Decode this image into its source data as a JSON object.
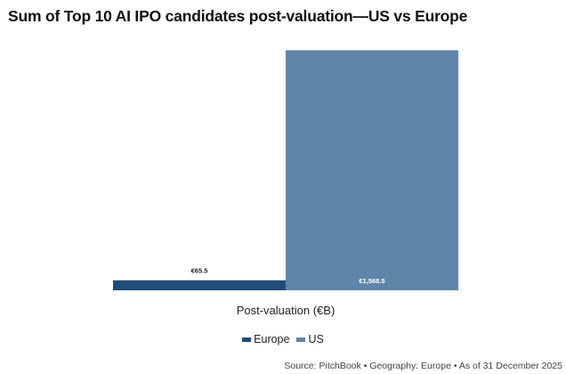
{
  "chart_data": {
    "type": "bar",
    "title": "Sum of Top 10 AI IPO candidates post-valuation—US vs Europe",
    "xlabel": "Post-valuation (€B)",
    "ylabel": "",
    "ylim": [
      0,
      1600
    ],
    "grid": false,
    "legend_position": "bottom",
    "series": [
      {
        "name": "Europe",
        "value": 65.5,
        "label": "€65.5",
        "color": "#1f4e79"
      },
      {
        "name": "US",
        "value": 1568.5,
        "label": "€1,568.5",
        "color": "#5f86a8"
      }
    ]
  },
  "footer": {
    "source": "Source: PitchBook • Geography: Europe • As of 31 December 2025"
  }
}
